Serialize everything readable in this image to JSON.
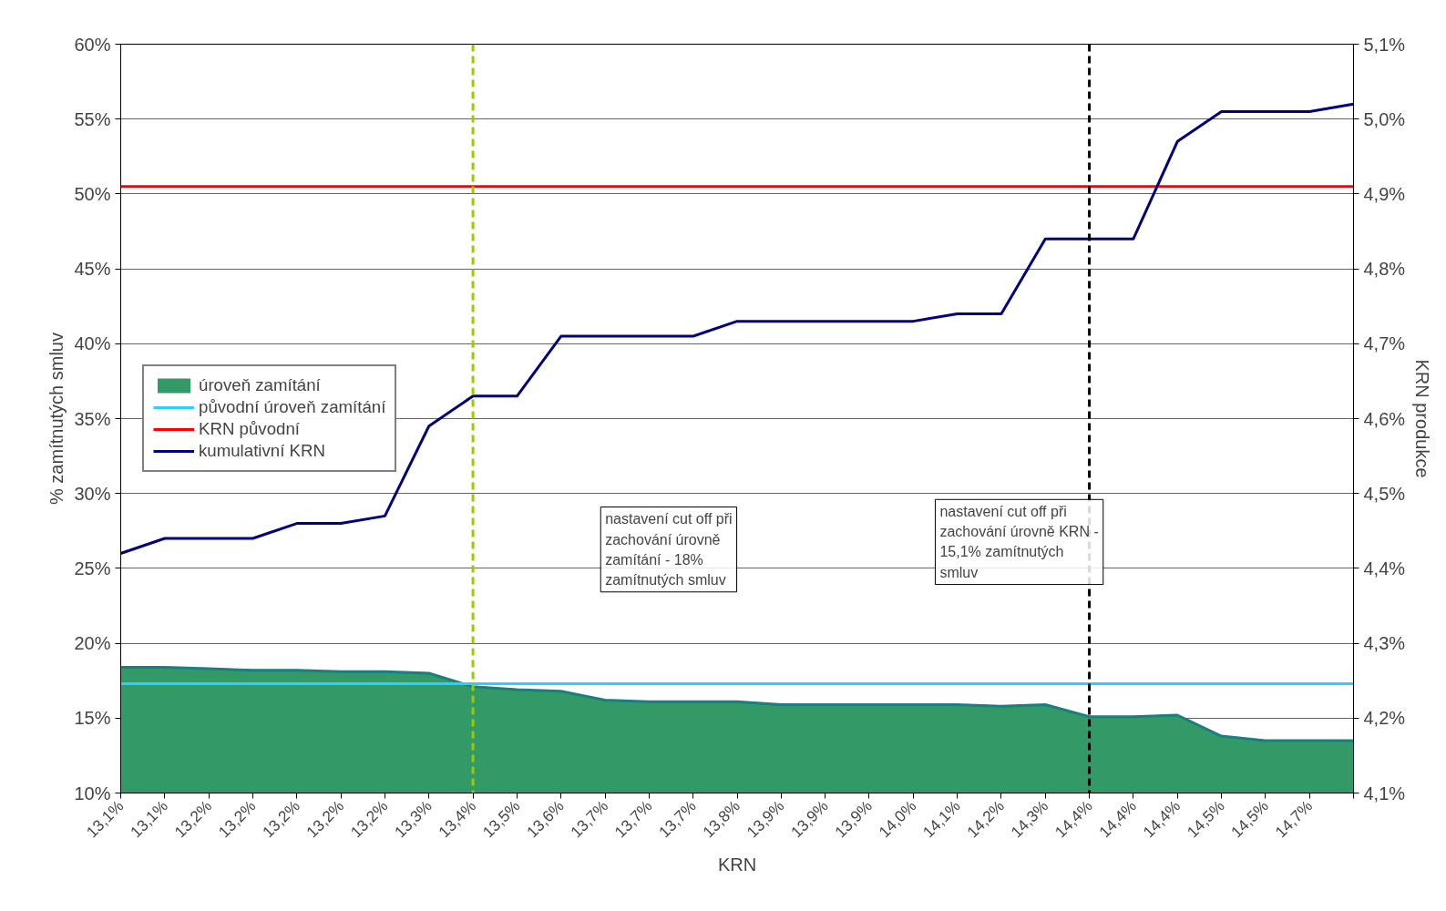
{
  "chart_data": {
    "type": "line",
    "xlabel": "KRN",
    "ylabel": "% zamítnutých smluv",
    "y2label": "KRN produkce",
    "categories": [
      "13,1%",
      "13,1%",
      "13,2%",
      "13,2%",
      "13,2%",
      "13,2%",
      "13,2%",
      "13,3%",
      "13,4%",
      "13,5%",
      "13,6%",
      "13,7%",
      "13,7%",
      "13,7%",
      "13,8%",
      "13,9%",
      "13,9%",
      "13,9%",
      "14,0%",
      "14,1%",
      "14,2%",
      "14,3%",
      "14,4%",
      "14,4%",
      "14,4%",
      "14,5%",
      "14,5%",
      "14,7%",
      null
    ],
    "series": [
      {
        "name": "úroveň zamítání",
        "type": "area",
        "color": "#339966",
        "values": [
          18.4,
          18.4,
          18.3,
          18.2,
          18.2,
          18.1,
          18.1,
          18.0,
          17.1,
          16.9,
          16.8,
          16.2,
          16.1,
          16.1,
          16.1,
          15.9,
          15.9,
          15.9,
          15.9,
          15.9,
          15.8,
          15.9,
          15.1,
          15.1,
          15.2,
          13.8,
          13.5,
          13.5,
          13.5
        ]
      },
      {
        "name": "původní úroveň zamítání",
        "color": "#33ccff",
        "values": [
          17.3,
          17.3,
          17.3,
          17.3,
          17.3,
          17.3,
          17.3,
          17.3,
          17.3,
          17.3,
          17.3,
          17.3,
          17.3,
          17.3,
          17.3,
          17.3,
          17.3,
          17.3,
          17.3,
          17.3,
          17.3,
          17.3,
          17.3,
          17.3,
          17.3,
          17.3,
          17.3,
          17.3,
          17.3
        ]
      },
      {
        "name": "KRN původní",
        "axis": "y2",
        "color": "#ff0000",
        "values": [
          4.91,
          4.91,
          4.91,
          4.91,
          4.91,
          4.91,
          4.91,
          4.91,
          4.91,
          4.91,
          4.91,
          4.91,
          4.91,
          4.91,
          4.91,
          4.91,
          4.91,
          4.91,
          4.91,
          4.91,
          4.91,
          4.91,
          4.91,
          4.91,
          4.91,
          4.91,
          4.91,
          4.91,
          4.91
        ]
      },
      {
        "name": "kumulativní KRN",
        "axis": "y2",
        "color": "#000080",
        "values": [
          4.42,
          4.44,
          4.44,
          4.44,
          4.46,
          4.46,
          4.47,
          4.59,
          4.63,
          4.63,
          4.71,
          4.71,
          4.71,
          4.71,
          4.73,
          4.73,
          4.73,
          4.73,
          4.73,
          4.74,
          4.74,
          4.84,
          4.84,
          4.84,
          4.97,
          5.01,
          5.01,
          5.01,
          5.02
        ]
      }
    ],
    "ylim": [
      10,
      60
    ],
    "yticks": [
      {
        "value": 10,
        "label": "10%"
      },
      {
        "value": 15,
        "label": "15%"
      },
      {
        "value": 20,
        "label": "20%"
      },
      {
        "value": 25,
        "label": "25%"
      },
      {
        "value": 30,
        "label": "30%"
      },
      {
        "value": 35,
        "label": "35%"
      },
      {
        "value": 40,
        "label": "40%"
      },
      {
        "value": 45,
        "label": "45%"
      },
      {
        "value": 50,
        "label": "50%"
      },
      {
        "value": 55,
        "label": "55%"
      },
      {
        "value": 60,
        "label": "60%"
      }
    ],
    "y2lim": [
      4.1,
      5.1
    ],
    "y2ticks": [
      {
        "value": 4.1,
        "label": "4,1%"
      },
      {
        "value": 4.2,
        "label": "4,2%"
      },
      {
        "value": 4.3,
        "label": "4,3%"
      },
      {
        "value": 4.4,
        "label": "4,4%"
      },
      {
        "value": 4.5,
        "label": "4,5%"
      },
      {
        "value": 4.6,
        "label": "4,6%"
      },
      {
        "value": 4.7,
        "label": "4,7%"
      },
      {
        "value": 4.8,
        "label": "4,8%"
      },
      {
        "value": 4.9,
        "label": "4,9%"
      },
      {
        "value": 5.0,
        "label": "5,0%"
      },
      {
        "value": 5.1,
        "label": "5,1%"
      }
    ],
    "ref_lines": [
      {
        "axis": "x",
        "value": "13,4%",
        "color": "#99cc00",
        "line_style": "dashed"
      },
      {
        "axis": "x",
        "value": "14,4%",
        "color": "#000000",
        "line_style": "dashed"
      }
    ],
    "annotations": [
      "nastavení cut off při zachování úrovně zamítání - 18% zamítnutých smluv",
      "nastavení cut off při zachování úrovně KRN - 15,1% zamítnutých smluv"
    ],
    "grid": "y",
    "legend": "left"
  }
}
